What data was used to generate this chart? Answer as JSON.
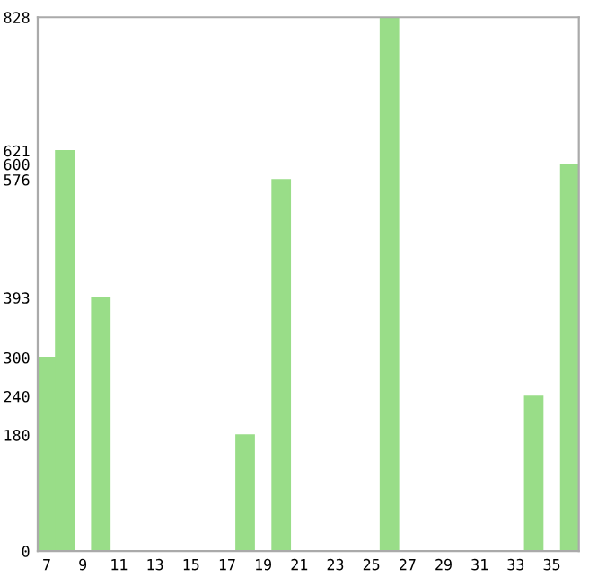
{
  "chart_data": {
    "type": "bar",
    "categories": [
      "7",
      null,
      "9",
      null,
      "11",
      null,
      "13",
      null,
      "15",
      null,
      "17",
      null,
      "19",
      null,
      "21",
      null,
      "23",
      null,
      "25",
      null,
      "27",
      null,
      "29",
      null,
      "31",
      null,
      "33",
      null,
      "35",
      null
    ],
    "values": [
      300,
      621,
      0,
      393,
      0,
      0,
      0,
      0,
      0,
      0,
      0,
      180,
      0,
      576,
      0,
      0,
      0,
      0,
      0,
      828,
      0,
      0,
      0,
      0,
      0,
      0,
      0,
      240,
      0,
      600
    ],
    "color": "#99dd88",
    "ylim": [
      0,
      828
    ],
    "yticks": [
      0,
      180,
      240,
      300,
      393,
      576,
      600,
      621,
      828
    ],
    "grid": false
  }
}
